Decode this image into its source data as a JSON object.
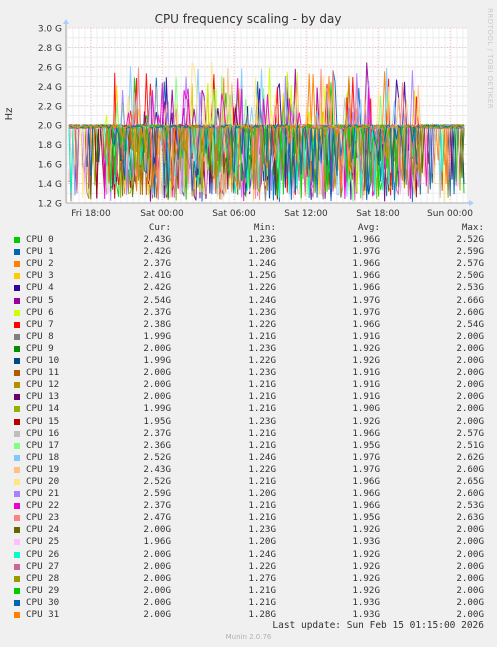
{
  "chart_data": {
    "type": "line",
    "title": "CPU frequency scaling - by day",
    "ylabel": "Hz",
    "ylim": [
      1.2,
      3.0
    ],
    "yticks": [
      "1.2 G",
      "1.4 G",
      "1.6 G",
      "1.8 G",
      "2.0 G",
      "2.2 G",
      "2.4 G",
      "2.6 G",
      "2.8 G",
      "3.0 G"
    ],
    "xticks": [
      "Fri 18:00",
      "Sat 00:00",
      "Sat 06:00",
      "Sat 12:00",
      "Sat 18:00",
      "Sun 00:00"
    ],
    "grid": true,
    "columns": [
      "Cur:",
      "Min:",
      "Avg:",
      "Max:"
    ],
    "series": [
      {
        "name": "CPU 0",
        "color": "#00cc00",
        "cur": "2.43G",
        "min": "1.23G",
        "avg": "1.96G",
        "max": "2.52G"
      },
      {
        "name": "CPU 1",
        "color": "#0066b3",
        "cur": "2.42G",
        "min": "1.20G",
        "avg": "1.97G",
        "max": "2.59G"
      },
      {
        "name": "CPU 2",
        "color": "#ff8000",
        "cur": "2.37G",
        "min": "1.24G",
        "avg": "1.96G",
        "max": "2.57G"
      },
      {
        "name": "CPU 3",
        "color": "#ffcc00",
        "cur": "2.41G",
        "min": "1.25G",
        "avg": "1.96G",
        "max": "2.50G"
      },
      {
        "name": "CPU 4",
        "color": "#330099",
        "cur": "2.42G",
        "min": "1.22G",
        "avg": "1.96G",
        "max": "2.53G"
      },
      {
        "name": "CPU 5",
        "color": "#990099",
        "cur": "2.54G",
        "min": "1.24G",
        "avg": "1.97G",
        "max": "2.66G"
      },
      {
        "name": "CPU 6",
        "color": "#ccff00",
        "cur": "2.37G",
        "min": "1.23G",
        "avg": "1.97G",
        "max": "2.60G"
      },
      {
        "name": "CPU 7",
        "color": "#ff0000",
        "cur": "2.38G",
        "min": "1.22G",
        "avg": "1.96G",
        "max": "2.54G"
      },
      {
        "name": "CPU 8",
        "color": "#808080",
        "cur": "1.99G",
        "min": "1.21G",
        "avg": "1.91G",
        "max": "2.00G"
      },
      {
        "name": "CPU 9",
        "color": "#008f00",
        "cur": "2.00G",
        "min": "1.23G",
        "avg": "1.92G",
        "max": "2.00G"
      },
      {
        "name": "CPU 10",
        "color": "#00487d",
        "cur": "1.99G",
        "min": "1.22G",
        "avg": "1.92G",
        "max": "2.00G"
      },
      {
        "name": "CPU 11",
        "color": "#b35a00",
        "cur": "2.00G",
        "min": "1.23G",
        "avg": "1.91G",
        "max": "2.00G"
      },
      {
        "name": "CPU 12",
        "color": "#b38f00",
        "cur": "2.00G",
        "min": "1.21G",
        "avg": "1.91G",
        "max": "2.00G"
      },
      {
        "name": "CPU 13",
        "color": "#6b006b",
        "cur": "2.00G",
        "min": "1.21G",
        "avg": "1.91G",
        "max": "2.00G"
      },
      {
        "name": "CPU 14",
        "color": "#8fb300",
        "cur": "1.99G",
        "min": "1.21G",
        "avg": "1.90G",
        "max": "2.00G"
      },
      {
        "name": "CPU 15",
        "color": "#b30000",
        "cur": "1.95G",
        "min": "1.23G",
        "avg": "1.92G",
        "max": "2.00G"
      },
      {
        "name": "CPU 16",
        "color": "#bebebe",
        "cur": "2.37G",
        "min": "1.21G",
        "avg": "1.96G",
        "max": "2.57G"
      },
      {
        "name": "CPU 17",
        "color": "#80ff80",
        "cur": "2.36G",
        "min": "1.21G",
        "avg": "1.95G",
        "max": "2.51G"
      },
      {
        "name": "CPU 18",
        "color": "#80c9ff",
        "cur": "2.52G",
        "min": "1.24G",
        "avg": "1.97G",
        "max": "2.62G"
      },
      {
        "name": "CPU 19",
        "color": "#ffc080",
        "cur": "2.43G",
        "min": "1.22G",
        "avg": "1.97G",
        "max": "2.60G"
      },
      {
        "name": "CPU 20",
        "color": "#ffe680",
        "cur": "2.52G",
        "min": "1.21G",
        "avg": "1.96G",
        "max": "2.65G"
      },
      {
        "name": "CPU 21",
        "color": "#aa80ff",
        "cur": "2.59G",
        "min": "1.20G",
        "avg": "1.96G",
        "max": "2.60G"
      },
      {
        "name": "CPU 22",
        "color": "#ee00cc",
        "cur": "2.37G",
        "min": "1.21G",
        "avg": "1.96G",
        "max": "2.53G"
      },
      {
        "name": "CPU 23",
        "color": "#ff8080",
        "cur": "2.47G",
        "min": "1.21G",
        "avg": "1.95G",
        "max": "2.63G"
      },
      {
        "name": "CPU 24",
        "color": "#666600",
        "cur": "2.00G",
        "min": "1.23G",
        "avg": "1.92G",
        "max": "2.00G"
      },
      {
        "name": "CPU 25",
        "color": "#ffbfff",
        "cur": "1.96G",
        "min": "1.20G",
        "avg": "1.93G",
        "max": "2.00G"
      },
      {
        "name": "CPU 26",
        "color": "#00ffcc",
        "cur": "2.00G",
        "min": "1.24G",
        "avg": "1.92G",
        "max": "2.00G"
      },
      {
        "name": "CPU 27",
        "color": "#cc6699",
        "cur": "2.00G",
        "min": "1.22G",
        "avg": "1.92G",
        "max": "2.00G"
      },
      {
        "name": "CPU 28",
        "color": "#999900",
        "cur": "2.00G",
        "min": "1.27G",
        "avg": "1.92G",
        "max": "2.00G"
      },
      {
        "name": "CPU 29",
        "color": "#00cc00",
        "cur": "2.00G",
        "min": "1.21G",
        "avg": "1.92G",
        "max": "2.00G"
      },
      {
        "name": "CPU 30",
        "color": "#0066b3",
        "cur": "2.00G",
        "min": "1.21G",
        "avg": "1.93G",
        "max": "2.00G"
      },
      {
        "name": "CPU 31",
        "color": "#ff8000",
        "cur": "2.00G",
        "min": "1.28G",
        "avg": "1.93G",
        "max": "2.00G"
      }
    ]
  },
  "side_label": "RRDTOOL / TOBI OETIKER",
  "last_update": "Last update: Sun Feb 15 01:15:00 2026",
  "footer": "Munin 2.0.76"
}
